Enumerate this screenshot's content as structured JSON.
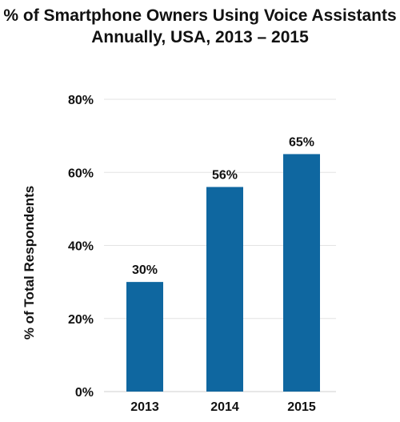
{
  "chart_data": {
    "type": "bar",
    "title_lines": [
      "% of Smartphone Owners Using Voice Assistants",
      "Annually, USA, 2013 – 2015"
    ],
    "categories": [
      "2013",
      "2014",
      "2015"
    ],
    "values": [
      30,
      56,
      65
    ],
    "value_labels": [
      "30%",
      "56%",
      "65%"
    ],
    "xlabel": "",
    "ylabel": "% of Total Respondents",
    "ylim": [
      0,
      80
    ],
    "yticks": [
      0,
      20,
      40,
      60,
      80
    ],
    "ytick_labels": [
      "0%",
      "20%",
      "40%",
      "60%",
      "80%"
    ],
    "grid": true,
    "legend": "none",
    "bar_color": "#0f67a0"
  }
}
